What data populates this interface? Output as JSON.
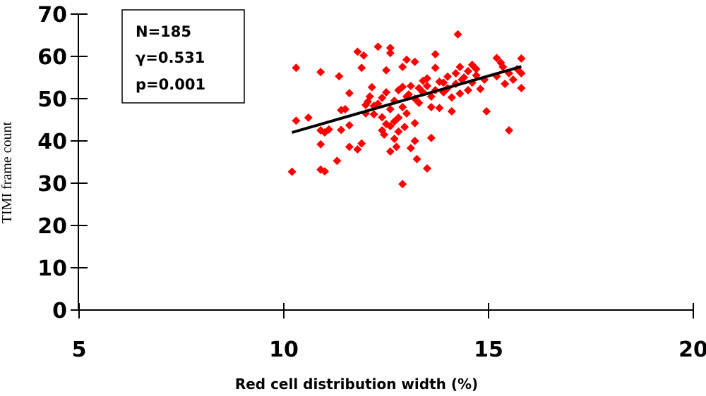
{
  "chart_data": {
    "type": "scatter",
    "xlabel": "Red cell distribution width (%)",
    "ylabel": "TIMI frame count",
    "xlim": [
      5,
      20
    ],
    "ylim": [
      0,
      70
    ],
    "xticks": [
      5,
      10,
      15,
      20
    ],
    "yticks": [
      0,
      10,
      20,
      30,
      40,
      50,
      60,
      70
    ],
    "grid": false,
    "marker_color": "#ff0000",
    "line_color": "#000000",
    "annotation": [
      "N=185",
      "γ=0.531",
      "p=0.001"
    ],
    "trendline": {
      "x": [
        10.2,
        15.8
      ],
      "y": [
        42.0,
        57.6
      ]
    },
    "points": [
      [
        10.2,
        32.7
      ],
      [
        10.3,
        57.3
      ],
      [
        10.3,
        44.8
      ],
      [
        10.6,
        45.5
      ],
      [
        10.9,
        56.3
      ],
      [
        10.9,
        42.5
      ],
      [
        10.9,
        39.2
      ],
      [
        10.9,
        33.2
      ],
      [
        11.0,
        32.8
      ],
      [
        11.0,
        42.0
      ],
      [
        11.1,
        42.7
      ],
      [
        11.3,
        35.3
      ],
      [
        11.35,
        55.3
      ],
      [
        11.4,
        47.3
      ],
      [
        11.4,
        42.6
      ],
      [
        11.5,
        47.5
      ],
      [
        11.6,
        51.3
      ],
      [
        11.6,
        43.7
      ],
      [
        11.6,
        38.6
      ],
      [
        11.8,
        61.1
      ],
      [
        11.8,
        38.0
      ],
      [
        11.9,
        57.3
      ],
      [
        11.9,
        39.4
      ],
      [
        11.95,
        60.2
      ],
      [
        12.0,
        48.5
      ],
      [
        12.0,
        46.5
      ],
      [
        12.05,
        49.3
      ],
      [
        12.1,
        50.5
      ],
      [
        12.15,
        52.7
      ],
      [
        12.2,
        48.3
      ],
      [
        12.3,
        62.3
      ],
      [
        12.3,
        48.8
      ],
      [
        12.4,
        50.2
      ],
      [
        12.4,
        45.6
      ],
      [
        12.4,
        42.5
      ],
      [
        12.45,
        41.5
      ],
      [
        12.5,
        56.7
      ],
      [
        12.5,
        44.0
      ],
      [
        12.5,
        51.5
      ],
      [
        12.6,
        62.0
      ],
      [
        12.6,
        60.8
      ],
      [
        12.6,
        47.5
      ],
      [
        12.6,
        43.5
      ],
      [
        12.6,
        37.5
      ],
      [
        12.7,
        49.5
      ],
      [
        12.7,
        44.6
      ],
      [
        12.7,
        40.5
      ],
      [
        12.75,
        38.6
      ],
      [
        12.8,
        52.0
      ],
      [
        12.8,
        42.2
      ],
      [
        12.8,
        45.5
      ],
      [
        12.9,
        57.5
      ],
      [
        12.9,
        29.8
      ],
      [
        12.9,
        48.0
      ],
      [
        12.95,
        43.3
      ],
      [
        13.0,
        59.2
      ],
      [
        13.0,
        50.5
      ],
      [
        13.0,
        46.5
      ],
      [
        13.1,
        53.0
      ],
      [
        13.1,
        38.3
      ],
      [
        13.2,
        58.7
      ],
      [
        13.2,
        50.0
      ],
      [
        13.2,
        44.2
      ],
      [
        13.2,
        40.0
      ],
      [
        13.25,
        35.7
      ],
      [
        13.3,
        52.5
      ],
      [
        13.3,
        49.0
      ],
      [
        13.4,
        54.2
      ],
      [
        13.4,
        51.5
      ],
      [
        13.5,
        53.0
      ],
      [
        13.5,
        33.5
      ],
      [
        13.6,
        50.5
      ],
      [
        13.6,
        48.0
      ],
      [
        13.6,
        40.7
      ],
      [
        13.7,
        57.3
      ],
      [
        13.7,
        60.5
      ],
      [
        13.7,
        52.0
      ],
      [
        13.8,
        54.0
      ],
      [
        13.8,
        47.8
      ],
      [
        13.9,
        51.5
      ],
      [
        13.9,
        53.8
      ],
      [
        14.0,
        52.5
      ],
      [
        14.1,
        50.3
      ],
      [
        14.1,
        47.0
      ],
      [
        14.2,
        56.0
      ],
      [
        14.2,
        53.5
      ],
      [
        14.25,
        65.2
      ],
      [
        14.3,
        51.2
      ],
      [
        14.3,
        57.5
      ],
      [
        14.35,
        54.5
      ],
      [
        14.4,
        55.0
      ],
      [
        14.5,
        52.0
      ],
      [
        14.5,
        56.5
      ],
      [
        14.6,
        53.8
      ],
      [
        14.7,
        55.5
      ],
      [
        14.7,
        57.0
      ],
      [
        14.8,
        52.3
      ],
      [
        14.9,
        54.5
      ],
      [
        14.95,
        47.0
      ],
      [
        15.2,
        59.6
      ],
      [
        15.3,
        58.5
      ],
      [
        15.35,
        57.5
      ],
      [
        15.4,
        53.5
      ],
      [
        15.5,
        42.5
      ],
      [
        15.5,
        56.0
      ],
      [
        15.6,
        54.5
      ],
      [
        15.7,
        57.0
      ],
      [
        15.8,
        59.5
      ],
      [
        15.8,
        52.5
      ],
      [
        15.8,
        56.0
      ],
      [
        15.2,
        55.3
      ],
      [
        13.05,
        51.0
      ],
      [
        12.9,
        52.8
      ],
      [
        14.0,
        55.2
      ],
      [
        13.5,
        54.8
      ],
      [
        14.6,
        58.0
      ],
      [
        12.2,
        46.3
      ]
    ]
  }
}
